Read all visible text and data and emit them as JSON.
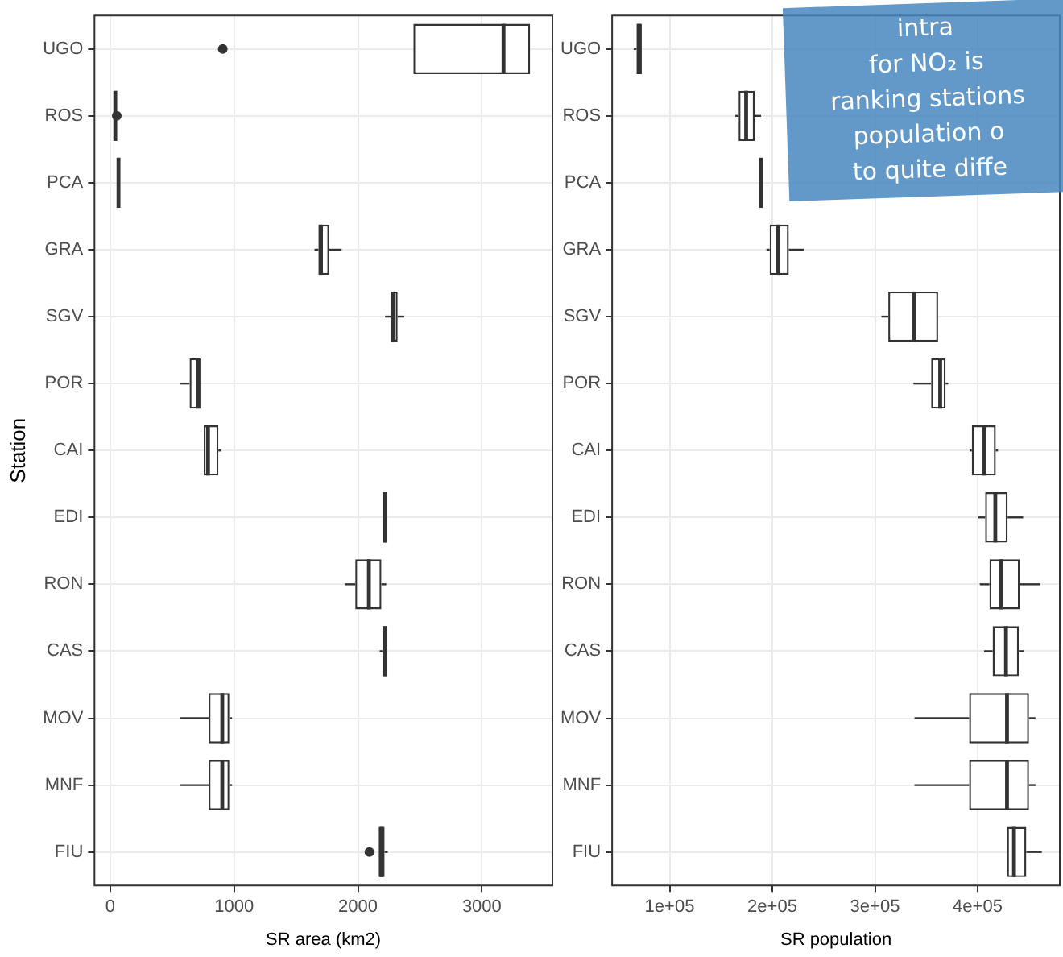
{
  "chart_data": [
    {
      "type": "box",
      "orientation": "horizontal",
      "xlabel": "SR area (km2)",
      "ylabel": "Station",
      "grid": true,
      "xlim": [
        -128,
        3570
      ],
      "xticks": [
        0,
        1000,
        2000,
        3000
      ],
      "categories": [
        "UGO",
        "ROS",
        "PCA",
        "GRA",
        "SGV",
        "POR",
        "CAI",
        "EDI",
        "RON",
        "CAS",
        "MOV",
        "MNF",
        "FIU"
      ],
      "boxes": [
        {
          "low": 2447,
          "q1": 2447,
          "median": 3175,
          "q3": 3390,
          "high": 3390,
          "outliers": [
            908
          ]
        },
        {
          "low": 40,
          "q1": 40,
          "median": 40,
          "q3": 40,
          "high": 40,
          "outliers": [
            52
          ]
        },
        {
          "low": 66,
          "q1": 66,
          "median": 66,
          "q3": 66,
          "high": 66
        },
        {
          "low": 1649,
          "q1": 1680,
          "median": 1701,
          "q3": 1767,
          "high": 1868
        },
        {
          "low": 2219,
          "q1": 2263,
          "median": 2280,
          "q3": 2320,
          "high": 2373
        },
        {
          "low": 566,
          "q1": 640,
          "median": 706,
          "q3": 728,
          "high": 728
        },
        {
          "low": 754,
          "q1": 754,
          "median": 789,
          "q3": 873,
          "high": 895
        },
        {
          "low": 2197,
          "q1": 2197,
          "median": 2215,
          "q3": 2232,
          "high": 2232
        },
        {
          "low": 1895,
          "q1": 1978,
          "median": 2088,
          "q3": 2189,
          "high": 2228
        },
        {
          "low": 2175,
          "q1": 2197,
          "median": 2215,
          "q3": 2232,
          "high": 2232
        },
        {
          "low": 566,
          "q1": 794,
          "median": 904,
          "q3": 961,
          "high": 983
        },
        {
          "low": 566,
          "q1": 794,
          "median": 904,
          "q3": 961,
          "high": 983
        },
        {
          "low": 2167,
          "q1": 2167,
          "median": 2190,
          "q3": 2215,
          "high": 2240,
          "outliers": [
            2092
          ]
        }
      ]
    },
    {
      "type": "box",
      "orientation": "horizontal",
      "xlabel": "SR population",
      "grid": true,
      "xlim": [
        44000,
        480000
      ],
      "xticks": [
        {
          "value": 100000,
          "label": "1e+05"
        },
        {
          "value": 200000,
          "label": "2e+05"
        },
        {
          "value": 300000,
          "label": "3e+05"
        },
        {
          "value": 400000,
          "label": "4e+05"
        }
      ],
      "categories": [
        "UGO",
        "ROS",
        "PCA",
        "GRA",
        "SGV",
        "POR",
        "CAI",
        "EDI",
        "RON",
        "CAS",
        "MOV",
        "MNF",
        "FIU"
      ],
      "boxes": [
        {
          "low": 65000,
          "q1": 67700,
          "median": 70300,
          "q3": 72900,
          "high": 72900
        },
        {
          "low": 164000,
          "q1": 167200,
          "median": 174500,
          "q3": 182800,
          "high": 189000
        },
        {
          "low": 189000,
          "q1": 189000,
          "median": 189000,
          "q3": 189000,
          "high": 189000
        },
        {
          "low": 194300,
          "q1": 197400,
          "median": 205700,
          "q3": 216100,
          "high": 230700
        },
        {
          "low": 306300,
          "q1": 313000,
          "median": 338000,
          "q3": 361500,
          "high": 361500
        },
        {
          "low": 337500,
          "q1": 354700,
          "median": 363500,
          "q3": 368800,
          "high": 371400
        },
        {
          "low": 392200,
          "q1": 394300,
          "median": 406300,
          "q3": 417700,
          "high": 419800
        },
        {
          "low": 400500,
          "q1": 407300,
          "median": 417200,
          "q3": 429200,
          "high": 444300
        },
        {
          "low": 402100,
          "q1": 411500,
          "median": 422900,
          "q3": 441100,
          "high": 460900
        },
        {
          "low": 406300,
          "q1": 414600,
          "median": 427600,
          "q3": 440100,
          "high": 444800
        },
        {
          "low": 338500,
          "q1": 391700,
          "median": 428600,
          "q3": 450000,
          "high": 456300
        },
        {
          "low": 338500,
          "q1": 391700,
          "median": 428600,
          "q3": 450000,
          "high": 456300
        },
        {
          "low": 428600,
          "q1": 428600,
          "median": 435400,
          "q3": 447400,
          "high": 462500
        }
      ],
      "annotations": [
        "intra",
        "for NO₂ is",
        "ranking stations",
        "population o",
        "to quite diffe"
      ]
    }
  ]
}
